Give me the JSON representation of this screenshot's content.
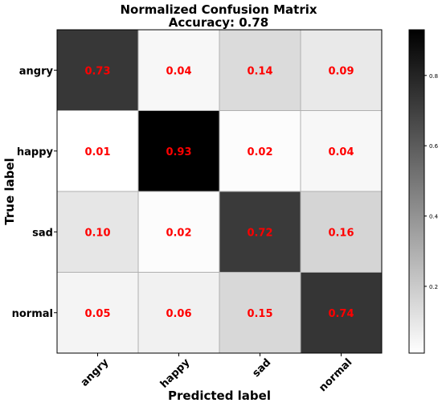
{
  "chart_data": {
    "type": "heatmap",
    "title": "Normalized Confusion Matrix",
    "subtitle": "Accuracy: 0.78",
    "xlabel": "Predicted label",
    "ylabel": "True label",
    "x_categories": [
      "angry",
      "happy",
      "sad",
      "normal"
    ],
    "y_categories": [
      "angry",
      "happy",
      "sad",
      "normal"
    ],
    "values": [
      [
        0.73,
        0.04,
        0.14,
        0.09
      ],
      [
        0.01,
        0.93,
        0.02,
        0.04
      ],
      [
        0.1,
        0.02,
        0.72,
        0.16
      ],
      [
        0.05,
        0.06,
        0.15,
        0.74
      ]
    ],
    "cell_labels": [
      [
        "0.73",
        "0.04",
        "0.14",
        "0.09"
      ],
      [
        "0.01",
        "0.93",
        "0.02",
        "0.04"
      ],
      [
        "0.10",
        "0.02",
        "0.72",
        "0.16"
      ],
      [
        "0.05",
        "0.06",
        "0.15",
        "0.74"
      ]
    ],
    "colormap": "Greys",
    "color_range": [
      0.01,
      0.93
    ],
    "colorbar_ticks": [
      "0.2",
      "0.4",
      "0.6",
      "0.8"
    ],
    "colorbar_tick_values": [
      0.2,
      0.4,
      0.6,
      0.8
    ],
    "annotation_color": "#ff0000",
    "grid": true,
    "grid_color": "#b0b0b0",
    "legend": "colorbar right"
  }
}
